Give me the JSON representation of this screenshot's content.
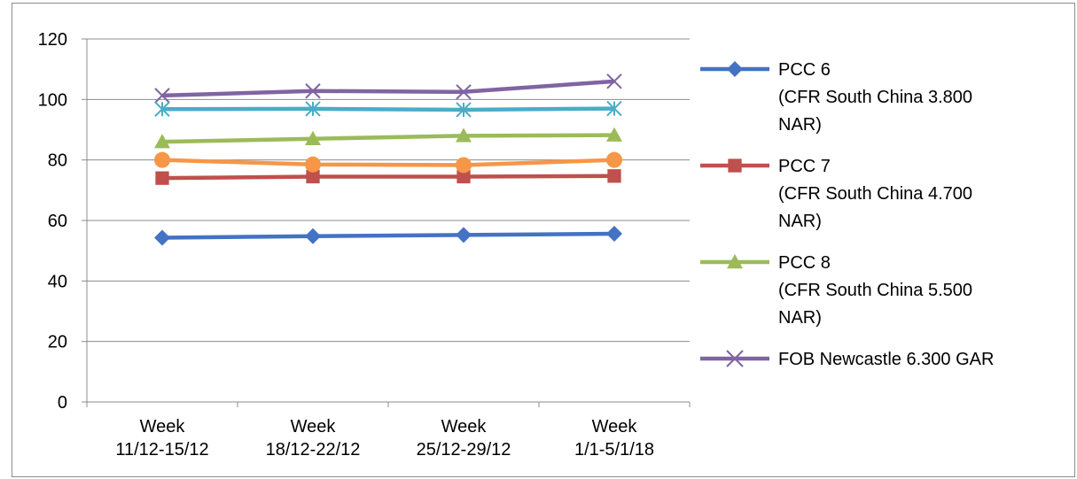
{
  "chart_data": {
    "type": "line",
    "title": "",
    "xlabel": "",
    "ylabel": "",
    "ylim": [
      0,
      120
    ],
    "yticks": [
      0,
      20,
      40,
      60,
      80,
      100,
      120
    ],
    "grid": true,
    "legend_position": "right",
    "categories": [
      [
        "Week",
        "11/12-15/12"
      ],
      [
        "Week",
        "18/12-22/12"
      ],
      [
        "Week",
        "25/12-29/12"
      ],
      [
        "Week",
        "1/1-5/1/18"
      ]
    ],
    "series": [
      {
        "name_lines": [
          "PCC 6",
          "(CFR South China 3.800",
          "NAR)"
        ],
        "color": "#4472C4",
        "marker": "diamond",
        "values": [
          54.3,
          54.8,
          55.2,
          55.6
        ],
        "in_legend": true
      },
      {
        "name_lines": [
          "PCC 7",
          "(CFR South China 4.700",
          "NAR)"
        ],
        "color": "#C0504D",
        "marker": "square",
        "values": [
          74,
          74.5,
          74.5,
          74.7
        ],
        "in_legend": true
      },
      {
        "name_lines": [
          "PCC 8",
          "(CFR South China 5.500",
          "NAR)"
        ],
        "color": "#9BBB59",
        "marker": "triangle",
        "values": [
          86,
          87,
          88,
          88.2
        ],
        "in_legend": true
      },
      {
        "name_lines": [
          "FOB Newcastle 6.300 GAR"
        ],
        "color": "#8064A2",
        "marker": "x",
        "values": [
          101.3,
          102.8,
          102.5,
          106
        ],
        "in_legend": true
      },
      {
        "name_lines": [],
        "color": "#4BACC6",
        "marker": "star",
        "values": [
          96.8,
          96.9,
          96.6,
          97
        ],
        "in_legend": false
      },
      {
        "name_lines": [],
        "color": "#F79646",
        "marker": "circle",
        "values": [
          80,
          78.5,
          78.3,
          80
        ],
        "in_legend": false
      }
    ]
  }
}
